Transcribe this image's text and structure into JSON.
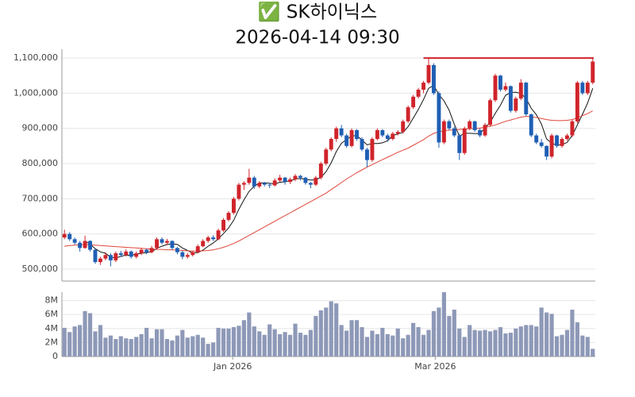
{
  "chart_data": [
    {
      "type": "candlestick",
      "title": "✅ SK하이닉스",
      "subtitle": "2026-04-14 09:30",
      "up_color": "#d0242b",
      "down_color": "#1f5fb4",
      "open": [
        590000,
        600000,
        585000,
        575000,
        560000,
        580000,
        555000,
        520000,
        530000,
        540000,
        525000,
        545000,
        540000,
        550000,
        535000,
        545000,
        555000,
        548000,
        560000,
        585000,
        575000,
        580000,
        560000,
        548000,
        535000,
        540000,
        548000,
        565000,
        580000,
        590000,
        585000,
        610000,
        640000,
        660000,
        700000,
        740000,
        745000,
        760000,
        735000,
        745000,
        740000,
        738000,
        752000,
        760000,
        748000,
        755000,
        765000,
        760000,
        745000,
        740000,
        760000,
        800000,
        840000,
        870000,
        900000,
        880000,
        850000,
        895000,
        870000,
        840000,
        810000,
        870000,
        895000,
        880000,
        870000,
        885000,
        890000,
        920000,
        960000,
        990000,
        1010000,
        1030000,
        1080000,
        1000000,
        860000,
        920000,
        900000,
        880000,
        830000,
        900000,
        920000,
        895000,
        880000,
        910000,
        980000,
        1050000,
        1010000,
        1020000,
        950000,
        985000,
        1030000,
        940000,
        880000,
        860000,
        850000,
        820000,
        880000,
        850000,
        870000,
        880000,
        920000,
        1030000,
        1000000,
        1030000
      ],
      "high": [
        612000,
        605000,
        590000,
        580000,
        595000,
        582000,
        558000,
        535000,
        548000,
        545000,
        550000,
        552000,
        556000,
        553000,
        550000,
        560000,
        558000,
        566000,
        590000,
        590000,
        586000,
        582000,
        563000,
        552000,
        546000,
        552000,
        570000,
        585000,
        595000,
        596000,
        615000,
        645000,
        665000,
        705000,
        745000,
        750000,
        785000,
        765000,
        750000,
        748000,
        745000,
        758000,
        768000,
        762000,
        760000,
        770000,
        768000,
        762000,
        748000,
        765000,
        805000,
        845000,
        875000,
        905000,
        910000,
        885000,
        900000,
        898000,
        875000,
        845000,
        875000,
        900000,
        898000,
        885000,
        890000,
        895000,
        925000,
        965000,
        995000,
        1015000,
        1035000,
        1100000,
        1085000,
        1005000,
        925000,
        925000,
        905000,
        885000,
        905000,
        925000,
        922000,
        900000,
        915000,
        985000,
        1055000,
        1052000,
        1030000,
        1022000,
        990000,
        1040000,
        1032000,
        942000,
        885000,
        870000,
        852000,
        885000,
        882000,
        875000,
        885000,
        925000,
        1035000,
        1035000,
        1035000,
        1100000
      ],
      "low": [
        585000,
        580000,
        570000,
        550000,
        558000,
        550000,
        515000,
        512000,
        525000,
        508000,
        520000,
        535000,
        536000,
        530000,
        530000,
        540000,
        542000,
        545000,
        556000,
        570000,
        568000,
        555000,
        542000,
        528000,
        530000,
        536000,
        545000,
        562000,
        575000,
        580000,
        582000,
        606000,
        635000,
        655000,
        695000,
        725000,
        740000,
        728000,
        730000,
        735000,
        730000,
        735000,
        748000,
        740000,
        742000,
        750000,
        752000,
        740000,
        730000,
        736000,
        755000,
        795000,
        835000,
        862000,
        875000,
        845000,
        846000,
        865000,
        835000,
        790000,
        805000,
        866000,
        875000,
        862000,
        866000,
        880000,
        885000,
        915000,
        955000,
        985000,
        1000000,
        1025000,
        995000,
        845000,
        855000,
        895000,
        875000,
        810000,
        825000,
        895000,
        890000,
        875000,
        876000,
        905000,
        975000,
        1005000,
        1005000,
        945000,
        945000,
        980000,
        935000,
        875000,
        855000,
        845000,
        810000,
        815000,
        845000,
        845000,
        865000,
        875000,
        915000,
        995000,
        995000,
        1025000
      ],
      "close": [
        600000,
        585000,
        575000,
        560000,
        580000,
        555000,
        520000,
        530000,
        540000,
        525000,
        545000,
        540000,
        550000,
        535000,
        545000,
        555000,
        548000,
        560000,
        585000,
        575000,
        580000,
        560000,
        548000,
        535000,
        540000,
        548000,
        565000,
        580000,
        590000,
        585000,
        610000,
        640000,
        660000,
        700000,
        740000,
        745000,
        760000,
        735000,
        745000,
        740000,
        738000,
        752000,
        760000,
        748000,
        755000,
        765000,
        760000,
        745000,
        740000,
        760000,
        800000,
        840000,
        870000,
        900000,
        880000,
        850000,
        895000,
        870000,
        840000,
        810000,
        870000,
        895000,
        880000,
        870000,
        885000,
        890000,
        920000,
        960000,
        990000,
        1010000,
        1030000,
        1080000,
        1000000,
        860000,
        920000,
        900000,
        880000,
        830000,
        900000,
        920000,
        895000,
        880000,
        910000,
        980000,
        1050000,
        1010000,
        1020000,
        950000,
        985000,
        1030000,
        940000,
        880000,
        860000,
        850000,
        820000,
        880000,
        850000,
        870000,
        880000,
        920000,
        1030000,
        1000000,
        1030000,
        1090000
      ],
      "lines": [
        {
          "color": "#111111",
          "values": [
            null,
            null,
            null,
            null,
            580000,
            571000,
            558000,
            549000,
            545000,
            534000,
            532000,
            536000,
            540000,
            539000,
            543000,
            545000,
            547000,
            549000,
            559000,
            565000,
            570000,
            572000,
            570000,
            560000,
            553000,
            546000,
            547000,
            554000,
            565000,
            574000,
            586000,
            601000,
            617000,
            639000,
            670000,
            697000,
            721000,
            736000,
            745000,
            745000,
            744000,
            742000,
            747000,
            748000,
            751000,
            756000,
            758000,
            755000,
            753000,
            754000,
            761000,
            777000,
            802000,
            834000,
            858000,
            868000,
            879000,
            879000,
            867000,
            853000,
            857000,
            857000,
            859000,
            865000,
            880000,
            884000,
            889000,
            905000,
            929000,
            954000,
            982000,
            1014000,
            1022000,
            996000,
            978000,
            952000,
            912000,
            878000,
            886000,
            886000,
            885000,
            885000,
            901000,
            917000,
            943000,
            966000,
            994000,
            1002000,
            1003000,
            999000,
            985000,
            957000,
            939000,
            912000,
            870000,
            858000,
            852000,
            854000,
            860000,
            880000,
            910000,
            940000,
            972000,
            1014000
          ]
        },
        {
          "color": "#e0453a",
          "values": [
            565000,
            567000,
            568000,
            569000,
            570000,
            569000,
            568000,
            567000,
            566000,
            565000,
            564000,
            563000,
            562000,
            561000,
            560000,
            559000,
            558000,
            557000,
            556000,
            556000,
            555000,
            555000,
            554000,
            553000,
            552000,
            551000,
            551000,
            552000,
            553000,
            555000,
            558000,
            562000,
            567000,
            573000,
            580000,
            588000,
            596000,
            604000,
            612000,
            620000,
            628000,
            636000,
            644000,
            652000,
            660000,
            668000,
            676000,
            684000,
            692000,
            700000,
            708000,
            716000,
            726000,
            736000,
            746000,
            756000,
            765000,
            774000,
            782000,
            790000,
            797000,
            804000,
            811000,
            818000,
            825000,
            832000,
            838000,
            844000,
            852000,
            860000,
            868000,
            878000,
            886000,
            890000,
            893000,
            895000,
            896000,
            897000,
            898000,
            899000,
            900000,
            901000,
            903000,
            906000,
            910000,
            915000,
            920000,
            924000,
            928000,
            932000,
            934000,
            933000,
            931000,
            928000,
            925000,
            923000,
            922000,
            922000,
            923000,
            925000,
            930000,
            936000,
            942000,
            950000
          ]
        }
      ],
      "hline": {
        "value": 1100000,
        "x0": 70,
        "color": "#d0242b"
      },
      "ylim": [
        466000,
        1125000
      ],
      "yticks": [
        {
          "value": 500000,
          "label": "500,000"
        },
        {
          "value": 600000,
          "label": "600,000"
        },
        {
          "value": 700000,
          "label": "700,000"
        },
        {
          "value": 800000,
          "label": "800,000"
        },
        {
          "value": 900000,
          "label": "900,000"
        },
        {
          "value": 1000000,
          "label": "1,000,000"
        },
        {
          "value": 1100000,
          "label": "1,100,000"
        }
      ],
      "grid": true
    },
    {
      "type": "bar",
      "color": "#8e99b8",
      "values": [
        4100000,
        3500000,
        4300000,
        4500000,
        6500000,
        6200000,
        3600000,
        4500000,
        2700000,
        3000000,
        2500000,
        2900000,
        2600000,
        2500000,
        2800000,
        3200000,
        4100000,
        2600000,
        3900000,
        3900000,
        2500000,
        2300000,
        3000000,
        3800000,
        2700000,
        2900000,
        3100000,
        2700000,
        1800000,
        2000000,
        4100000,
        4000000,
        4000000,
        4200000,
        4400000,
        5200000,
        6300000,
        4300000,
        3600000,
        3100000,
        4600000,
        3900000,
        3200000,
        3500000,
        3100000,
        4700000,
        3400000,
        3100000,
        3800000,
        5800000,
        6600000,
        7000000,
        7900000,
        7600000,
        4500000,
        3700000,
        5200000,
        5200000,
        4200000,
        2800000,
        3700000,
        3200000,
        4100000,
        3200000,
        3000000,
        4000000,
        2600000,
        3100000,
        4800000,
        4200000,
        3100000,
        3800000,
        6500000,
        7000000,
        9200000,
        5800000,
        6700000,
        4000000,
        2800000,
        4500000,
        3800000,
        3700000,
        3800000,
        3600000,
        3800000,
        4200000,
        3300000,
        3400000,
        4000000,
        4300000,
        4500000,
        4500000,
        4300000,
        7000000,
        6300000,
        6100000,
        2900000,
        3100000,
        3800000,
        6700000,
        4900000,
        3000000,
        2800000,
        1100000
      ],
      "ylim": [
        0,
        9200000
      ],
      "yticks": [
        0,
        {
          "value": 2000000,
          "label": "2M"
        },
        {
          "value": 4000000,
          "label": "4M"
        },
        {
          "value": 6000000,
          "label": "6M"
        },
        {
          "value": 8000000,
          "label": "8M"
        }
      ],
      "xticks": [
        {
          "value": 32.8,
          "label": "Jan 2026"
        },
        {
          "value": 72.3,
          "label": "Mar 2026"
        }
      ],
      "grid": true
    }
  ]
}
